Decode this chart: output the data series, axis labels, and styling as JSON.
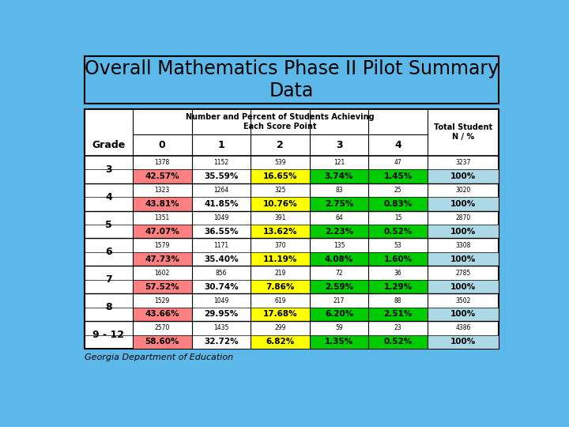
{
  "title": "Overall Mathematics Phase II Pilot Summary\nData",
  "subtitle": "Georgia Department of Education",
  "background_color": "#5BB8E8",
  "header_text": "Number and Percent of Students Achieving\nEach Score Point",
  "col_headers": [
    "0",
    "1",
    "2",
    "3",
    "4"
  ],
  "total_header": "Total Student\nN / %",
  "grade_label": "Grade",
  "grades": [
    "3",
    "4",
    "5",
    "6",
    "7",
    "8",
    "9 - 12"
  ],
  "counts": [
    [
      1378,
      1152,
      539,
      121,
      47,
      3237
    ],
    [
      1323,
      1264,
      325,
      83,
      25,
      3020
    ],
    [
      1351,
      1049,
      391,
      64,
      15,
      2870
    ],
    [
      1579,
      1171,
      370,
      135,
      53,
      3308
    ],
    [
      1602,
      856,
      219,
      72,
      36,
      2785
    ],
    [
      1529,
      1049,
      619,
      217,
      88,
      3502
    ],
    [
      2570,
      1435,
      299,
      59,
      23,
      4386
    ]
  ],
  "percents": [
    [
      "42.57%",
      "35.59%",
      "16.65%",
      "3.74%",
      "1.45%",
      "100%"
    ],
    [
      "43.81%",
      "41.85%",
      "10.76%",
      "2.75%",
      "0.83%",
      "100%"
    ],
    [
      "47.07%",
      "36.55%",
      "13.62%",
      "2.23%",
      "0.52%",
      "100%"
    ],
    [
      "47.73%",
      "35.40%",
      "11.19%",
      "4.08%",
      "1.60%",
      "100%"
    ],
    [
      "57.52%",
      "30.74%",
      "7.86%",
      "2.59%",
      "1.29%",
      "100%"
    ],
    [
      "43.66%",
      "29.95%",
      "17.68%",
      "6.20%",
      "2.51%",
      "100%"
    ],
    [
      "58.60%",
      "32.72%",
      "6.82%",
      "1.35%",
      "0.52%",
      "100%"
    ]
  ],
  "percent_colors": [
    [
      "#FF8080",
      "#FFFFFF",
      "#FFFF00",
      "#00CC00",
      "#00CC00",
      "#ADD8E6"
    ],
    [
      "#FF8080",
      "#FFFFFF",
      "#FFFF00",
      "#00CC00",
      "#00CC00",
      "#ADD8E6"
    ],
    [
      "#FF8080",
      "#FFFFFF",
      "#FFFF00",
      "#00CC00",
      "#00CC00",
      "#ADD8E6"
    ],
    [
      "#FF8080",
      "#FFFFFF",
      "#FFFF00",
      "#00CC00",
      "#00CC00",
      "#ADD8E6"
    ],
    [
      "#FF8080",
      "#FFFFFF",
      "#FFFF00",
      "#00CC00",
      "#00CC00",
      "#ADD8E6"
    ],
    [
      "#FF8080",
      "#FFFFFF",
      "#FFFF00",
      "#00CC00",
      "#00CC00",
      "#ADD8E6"
    ],
    [
      "#FF8080",
      "#FFFFFF",
      "#FFFF00",
      "#00CC00",
      "#00CC00",
      "#ADD8E6"
    ]
  ],
  "title_bg": "#5BB8E8",
  "table_bg": "#FFFFFF"
}
